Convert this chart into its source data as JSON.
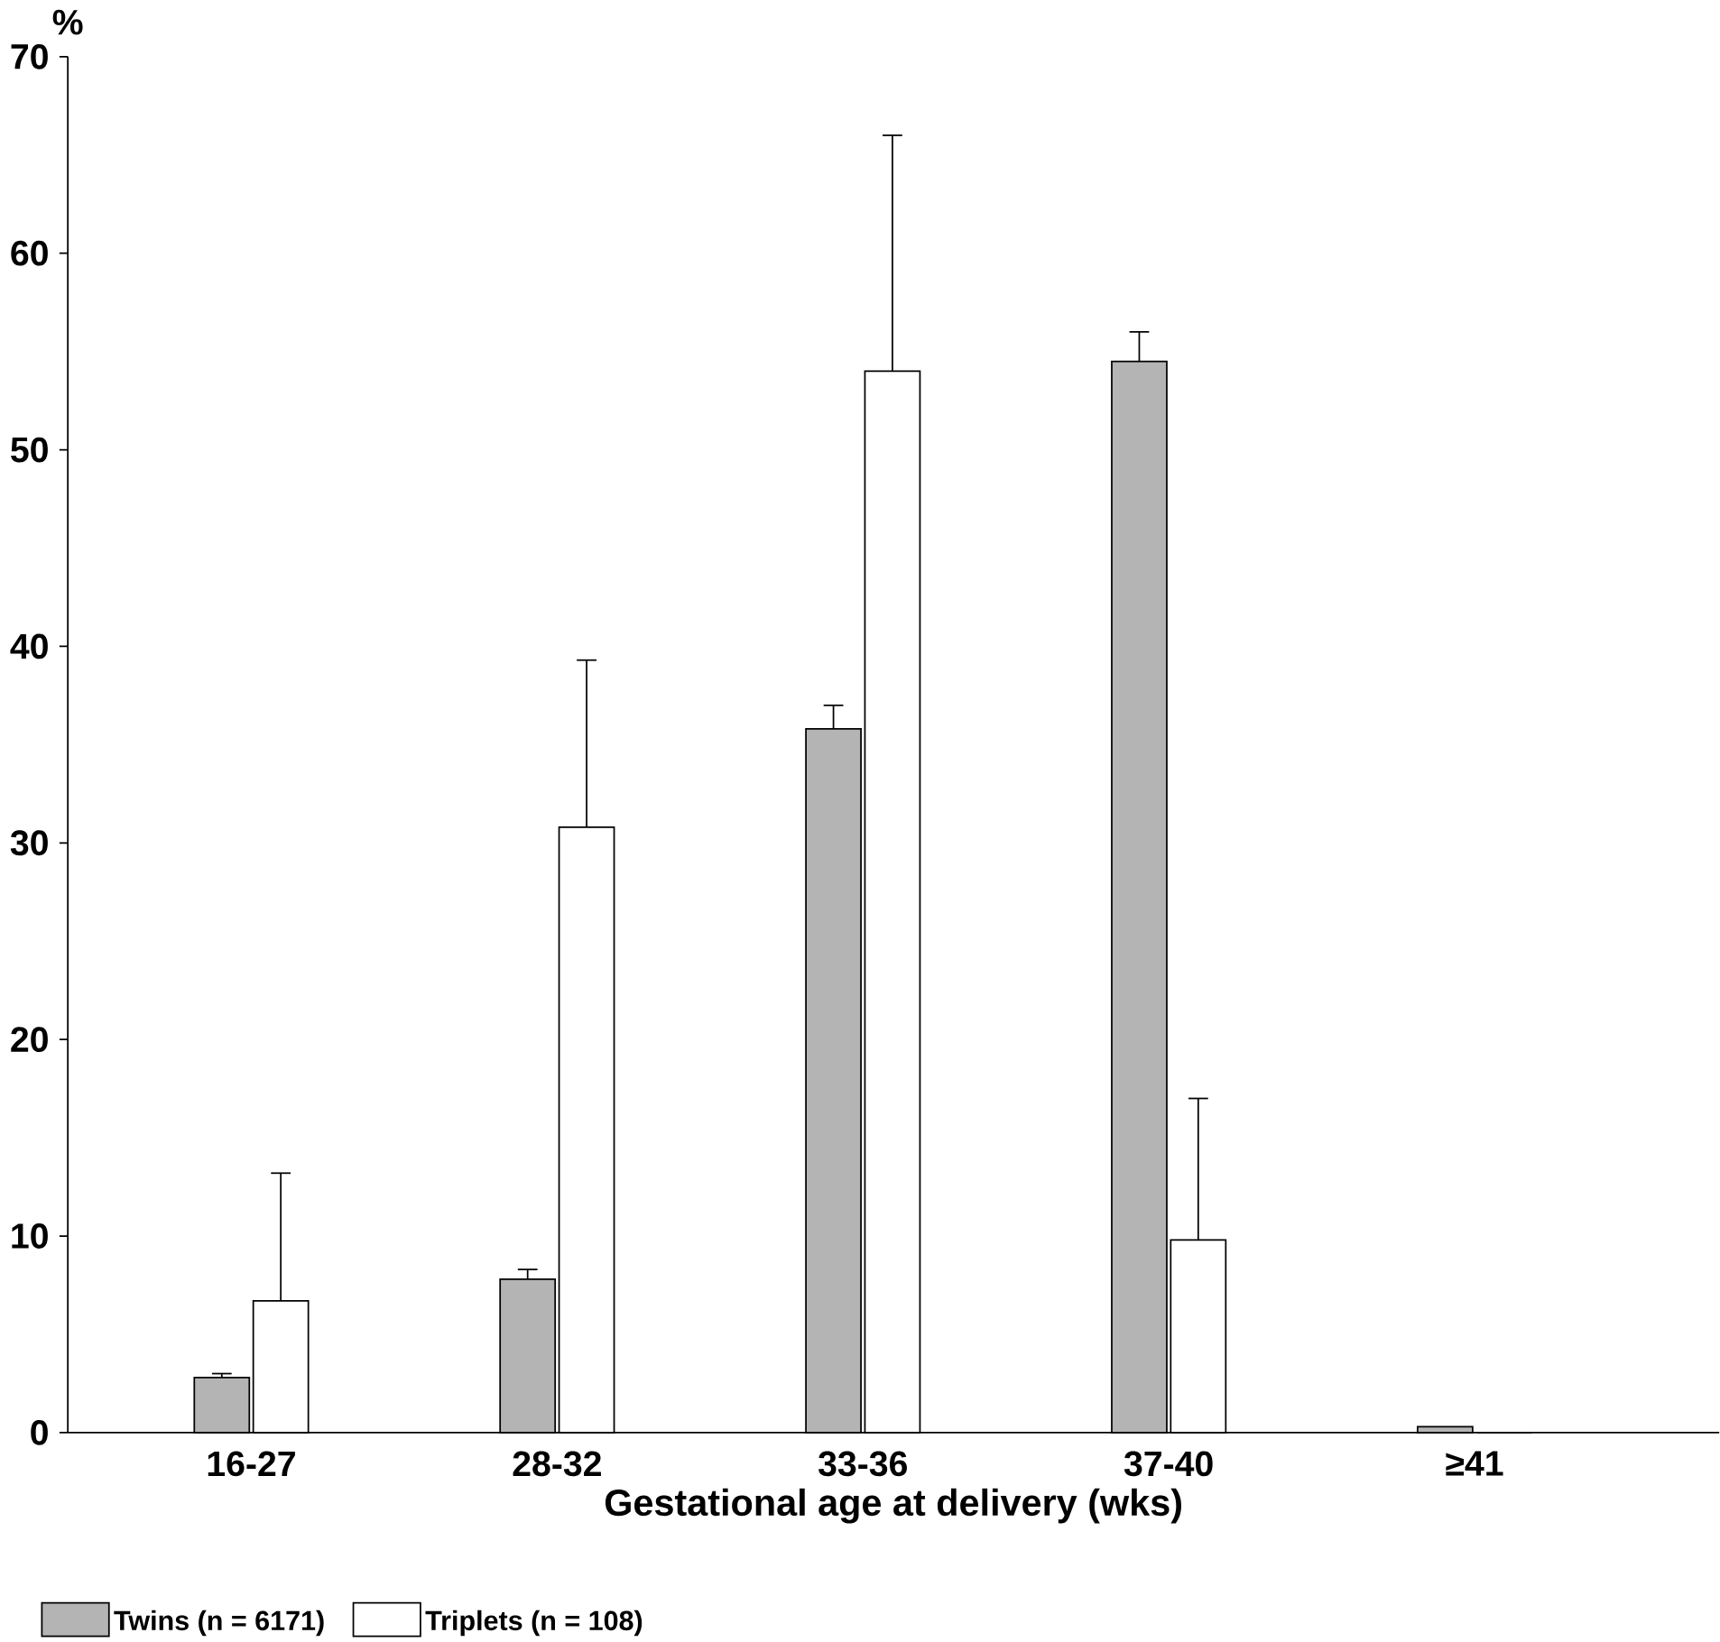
{
  "chart_data": {
    "type": "bar",
    "xlabel": "Gestational age at delivery (wks)",
    "ylabel": "%",
    "categories": [
      "16-27",
      "28-32",
      "33-36",
      "37-40",
      "≥41"
    ],
    "series": [
      {
        "name": "Twins (n = 6171)",
        "color": "#b4b4b4",
        "values": [
          2.8,
          7.8,
          35.8,
          54.5,
          0.3
        ],
        "errors": [
          0.2,
          0.5,
          1.2,
          1.5,
          null
        ]
      },
      {
        "name": "Triplets (n = 108)",
        "color": "#ffffff",
        "values": [
          6.7,
          30.8,
          54,
          9.8,
          0
        ],
        "errors": [
          6.5,
          8.5,
          12,
          7.2,
          null
        ]
      }
    ],
    "ylim": [
      0,
      70
    ],
    "yticks": [
      0,
      10,
      20,
      30,
      40,
      50,
      60,
      70
    ],
    "legend": "bottom left"
  }
}
